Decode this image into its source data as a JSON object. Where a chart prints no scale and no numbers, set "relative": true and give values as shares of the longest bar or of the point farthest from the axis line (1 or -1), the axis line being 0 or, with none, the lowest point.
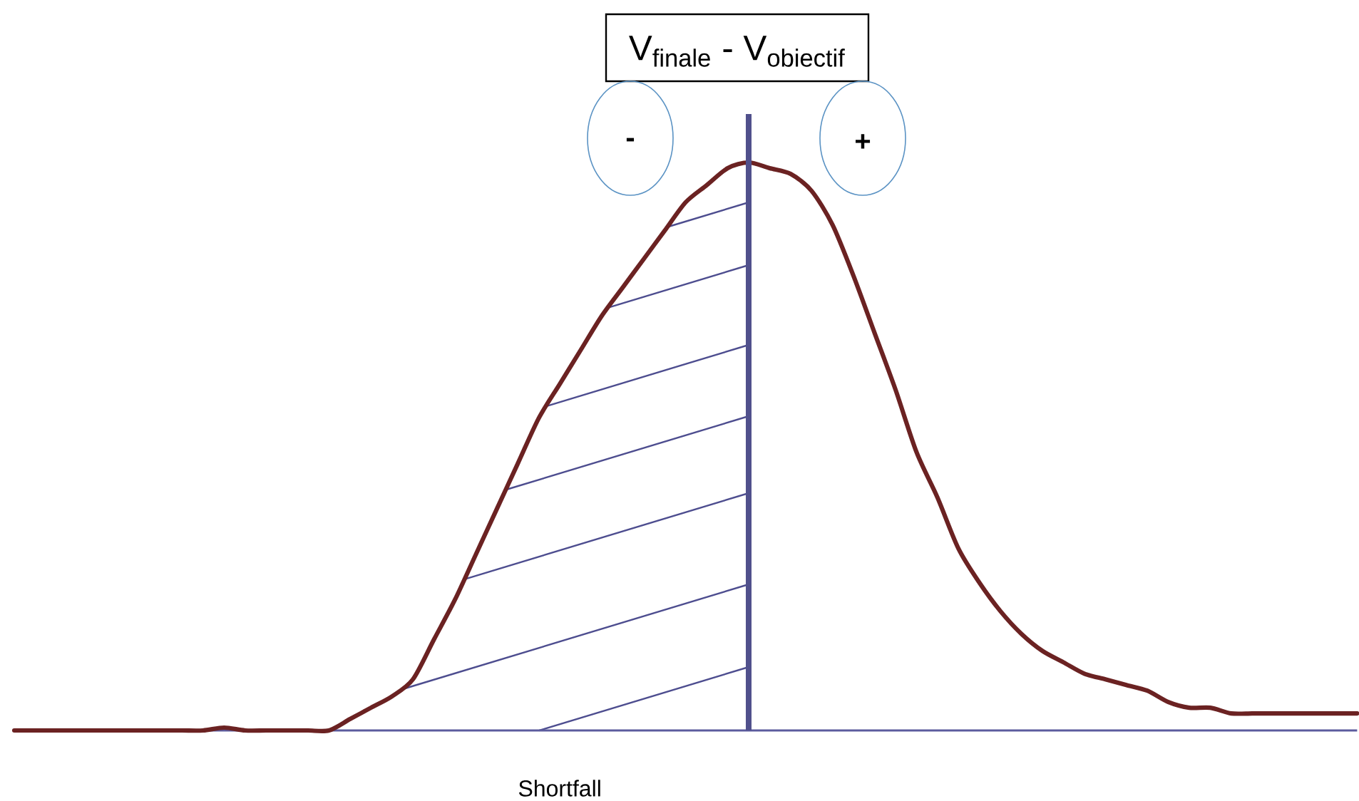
{
  "chart_data": {
    "type": "line",
    "title": "V$_{finale}$ - V$_{obiectif}$",
    "relative": true,
    "line_style": "solid",
    "categories": [
      null,
      null,
      null,
      null,
      null,
      null,
      null,
      null,
      null,
      null,
      null,
      null,
      null,
      null,
      null,
      null,
      null,
      null,
      null,
      null,
      null,
      null,
      null,
      null,
      null,
      null,
      null,
      null,
      null,
      null,
      null,
      null,
      null,
      null,
      null,
      null,
      null,
      null,
      null,
      null,
      null,
      null,
      null,
      null,
      null,
      null,
      null,
      null,
      null,
      null,
      null,
      null,
      null,
      null,
      null,
      null,
      null,
      null,
      null,
      null,
      null,
      null,
      null,
      null,
      null
    ],
    "series": [
      {
        "color": "#6b2222",
        "values": [
          0,
          0,
          0,
          0,
          0,
          0,
          0,
          0,
          0,
          0,
          0.005,
          0,
          0,
          0,
          0,
          0,
          0.02,
          0.04,
          0.06,
          0.09,
          0.16,
          0.23,
          0.31,
          0.39,
          0.47,
          0.55,
          0.61,
          0.67,
          0.73,
          0.78,
          0.83,
          0.88,
          0.93,
          0.96,
          0.99,
          1,
          0.99,
          0.98,
          0.95,
          0.89,
          0.8,
          0.7,
          0.6,
          0.49,
          0.41,
          0.32,
          0.26,
          0.21,
          0.17,
          0.14,
          0.12,
          0.1,
          0.09,
          0.08,
          0.07,
          0.05,
          0.04,
          0.04,
          0.03,
          0.03,
          0.03,
          0.03,
          0.03,
          0.03,
          0.03
        ]
      }
    ],
    "annotations": [
      "-",
      "+",
      "Shortfall"
    ]
  }
}
